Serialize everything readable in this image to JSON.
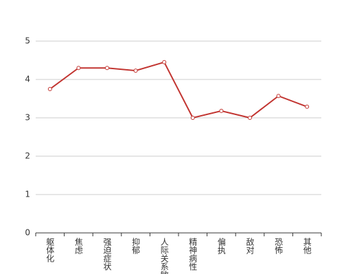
{
  "chart_data": {
    "type": "line",
    "categories": [
      "躯体化",
      "焦虑",
      "强迫症状",
      "抑郁",
      "人际关系敏感",
      "精神病性",
      "偏执",
      "敌对",
      "恐怖",
      "其他"
    ],
    "values": [
      3.75,
      4.3,
      4.3,
      4.23,
      4.45,
      3.0,
      3.18,
      3.0,
      3.57,
      3.29
    ],
    "color": "#c23531",
    "ylim": [
      0,
      5
    ],
    "yticks": [
      0,
      1,
      2,
      3,
      4,
      5
    ],
    "grid": true
  }
}
